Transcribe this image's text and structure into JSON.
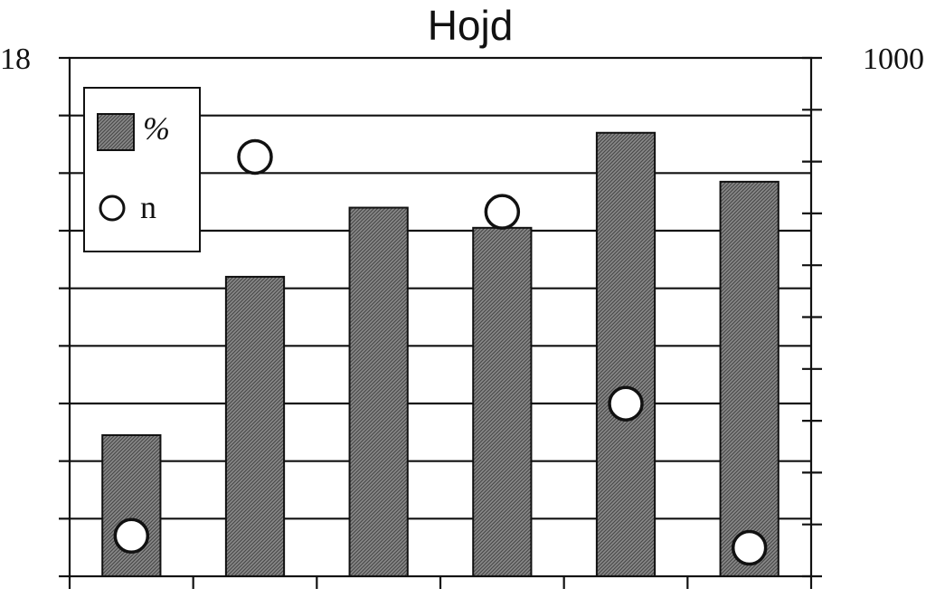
{
  "chart_data": {
    "type": "bar",
    "title": "Hojd",
    "y_left_top_label": "18",
    "y_right_top_label": "1000",
    "ylim_left": [
      0,
      18
    ],
    "ylim_right": [
      0,
      1000
    ],
    "grid": true,
    "legend_position": "top-left",
    "categories": [
      "",
      "",
      "",
      "",
      "",
      ""
    ],
    "series": [
      {
        "name": "%",
        "kind": "bar",
        "axis": "left",
        "color": "#666666",
        "values": [
          4.9,
          10.4,
          12.8,
          12.1,
          15.4,
          13.7
        ]
      },
      {
        "name": "n",
        "kind": "marker",
        "axis": "right",
        "color": "#ffffff",
        "values": [
          78,
          0,
          0,
          0,
          333,
          55
        ]
      },
      {
        "kind": "marker",
        "axis": "right",
        "color": "#ffffff",
        "values": [
          0,
          809,
          0,
          703,
          0,
          0
        ]
      }
    ]
  }
}
